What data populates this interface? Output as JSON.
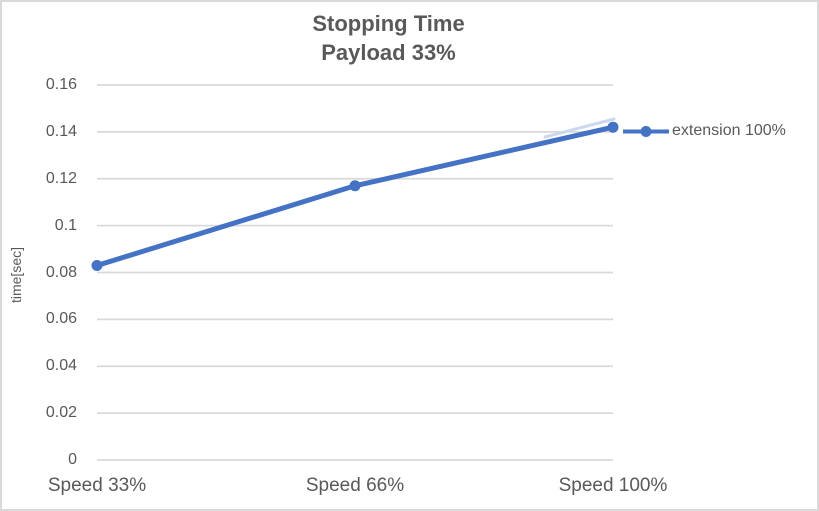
{
  "window": {
    "background": "#FFFFFF",
    "border_color": "#D9D9D9"
  },
  "title": {
    "line1": "Stopping Time",
    "line2": "Payload 33%",
    "color": "#595959"
  },
  "legend": {
    "label": "extension 100%",
    "position": "right"
  },
  "colors": {
    "series_blue": "#4472C4",
    "text_gray": "#595959",
    "gridline_gray": "#D9D9D9"
  },
  "chart_data": {
    "type": "line",
    "title": "Stopping Time Payload 33%",
    "categories": [
      "Speed 33%",
      "Speed 66%",
      "Speed 100%"
    ],
    "series": [
      {
        "name": "extension 100%",
        "values": [
          0.083,
          0.117,
          0.142
        ],
        "color": "#4472C4",
        "marker": "circle"
      }
    ],
    "xlabel": "",
    "ylabel": "time[sec]",
    "ylim": [
      0,
      0.16
    ],
    "ytick_step": 0.02,
    "ytick_values": [
      0,
      0.02,
      0.04,
      0.06,
      0.08,
      0.1,
      0.12,
      0.14,
      0.16
    ],
    "ytick_labels": [
      "0",
      "0.02",
      "0.04",
      "0.06",
      "0.08",
      "0.1",
      "0.12",
      "0.14",
      "0.16"
    ],
    "grid": true,
    "legend_position": "right"
  }
}
